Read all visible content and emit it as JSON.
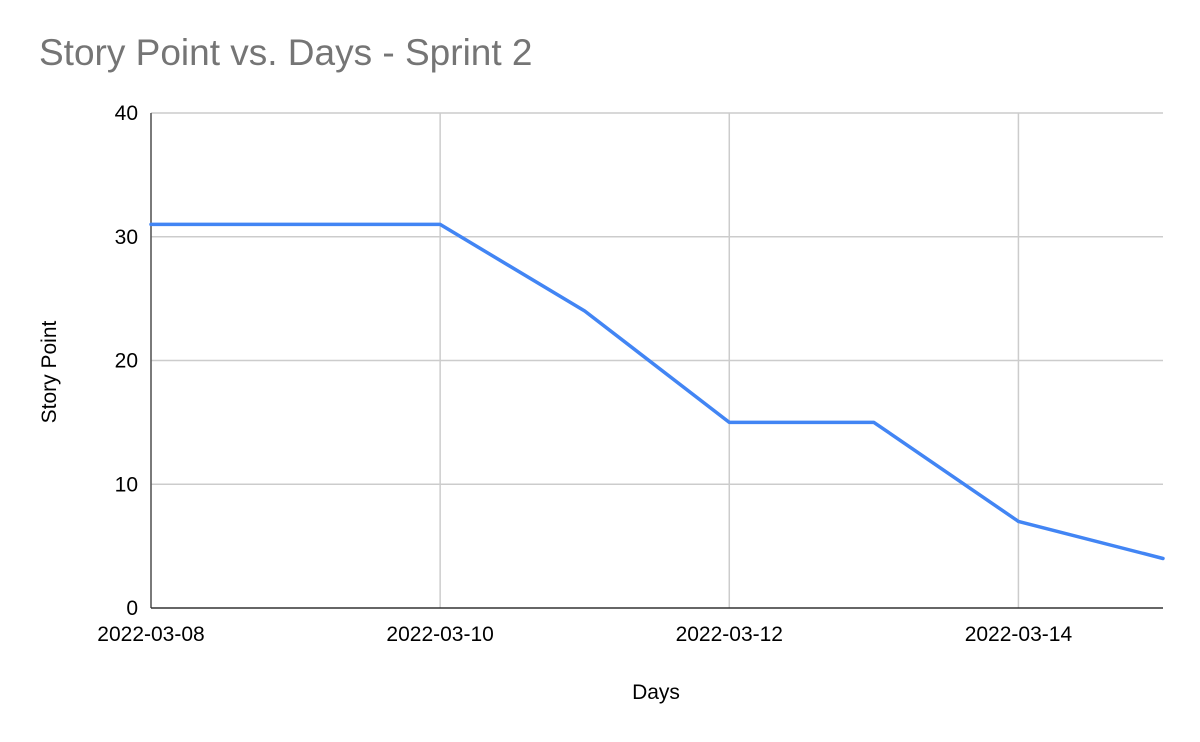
{
  "chart_data": {
    "type": "line",
    "title": "Story Point vs. Days - Sprint 2",
    "xlabel": "Days",
    "ylabel": "Story Point",
    "x_axis_type": "date",
    "xlim": [
      "2022-03-08",
      "2022-03-15"
    ],
    "ylim": [
      0,
      40
    ],
    "x_tick_labels": [
      "2022-03-08",
      "2022-03-10",
      "2022-03-12",
      "2022-03-14"
    ],
    "y_tick_labels": [
      "0",
      "10",
      "20",
      "30",
      "40"
    ],
    "grid": true,
    "legend": "none",
    "series": [
      {
        "color": "#4285f4",
        "points": [
          {
            "x": "2022-03-08",
            "y": 31
          },
          {
            "x": "2022-03-09",
            "y": 31
          },
          {
            "x": "2022-03-10",
            "y": 31
          },
          {
            "x": "2022-03-11",
            "y": 24
          },
          {
            "x": "2022-03-12",
            "y": 15
          },
          {
            "x": "2022-03-13",
            "y": 15
          },
          {
            "x": "2022-03-14",
            "y": 7
          },
          {
            "x": "2022-03-15",
            "y": 4
          }
        ]
      }
    ]
  }
}
